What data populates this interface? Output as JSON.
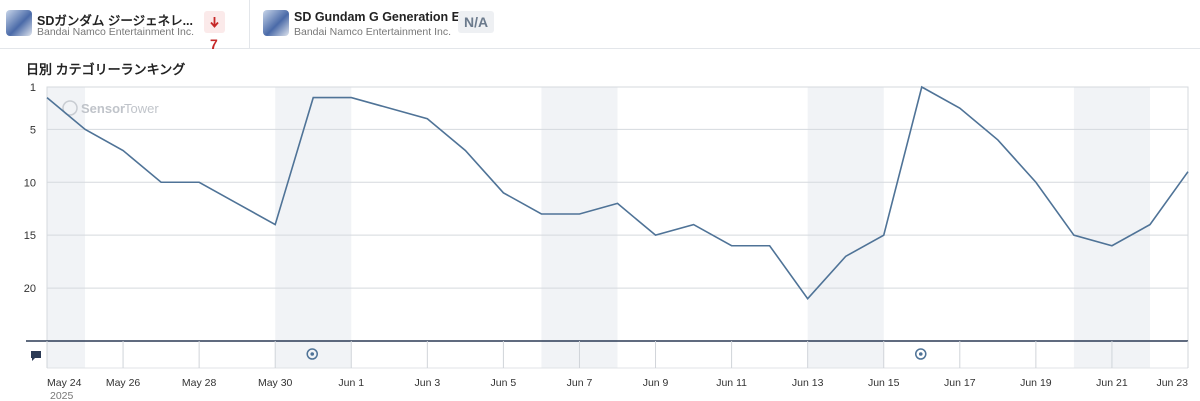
{
  "header": {
    "apps": [
      {
        "name": "SDガンダム ジージェネレ...",
        "publisher": "Bandai Namco Entertainment Inc.",
        "change": "7"
      },
      {
        "name": "SD Gundam G Generation E...",
        "publisher": "Bandai Namco Entertainment Inc.",
        "change": "N/A"
      }
    ]
  },
  "watermark": [
    "Sensor",
    "Tower"
  ],
  "chart_data": {
    "type": "line",
    "title": "日別 カテゴリーランキング",
    "x": [
      "May 24",
      null,
      "May 26",
      null,
      "May 28",
      null,
      "May 30",
      null,
      "Jun 1",
      null,
      "Jun 3",
      null,
      "Jun 5",
      null,
      "Jun 7",
      null,
      "Jun 9",
      null,
      "Jun 11",
      null,
      "Jun 13",
      null,
      "Jun 15",
      null,
      "Jun 17",
      null,
      "Jun 19",
      null,
      "Jun 21",
      null,
      "Jun 23"
    ],
    "year_label": "2025",
    "series": [
      {
        "color": "#4f7397",
        "values": [
          2,
          5,
          7,
          10,
          10,
          12,
          14,
          2,
          2,
          3,
          4,
          7,
          11,
          13,
          13,
          12,
          15,
          14,
          16,
          16,
          21,
          17,
          15,
          1,
          3,
          6,
          10,
          15,
          16,
          14,
          9
        ]
      }
    ],
    "ylim": [
      1,
      25
    ],
    "y_inverted": true,
    "yticks": [
      1,
      5,
      10,
      15,
      20
    ],
    "grid": true
  }
}
